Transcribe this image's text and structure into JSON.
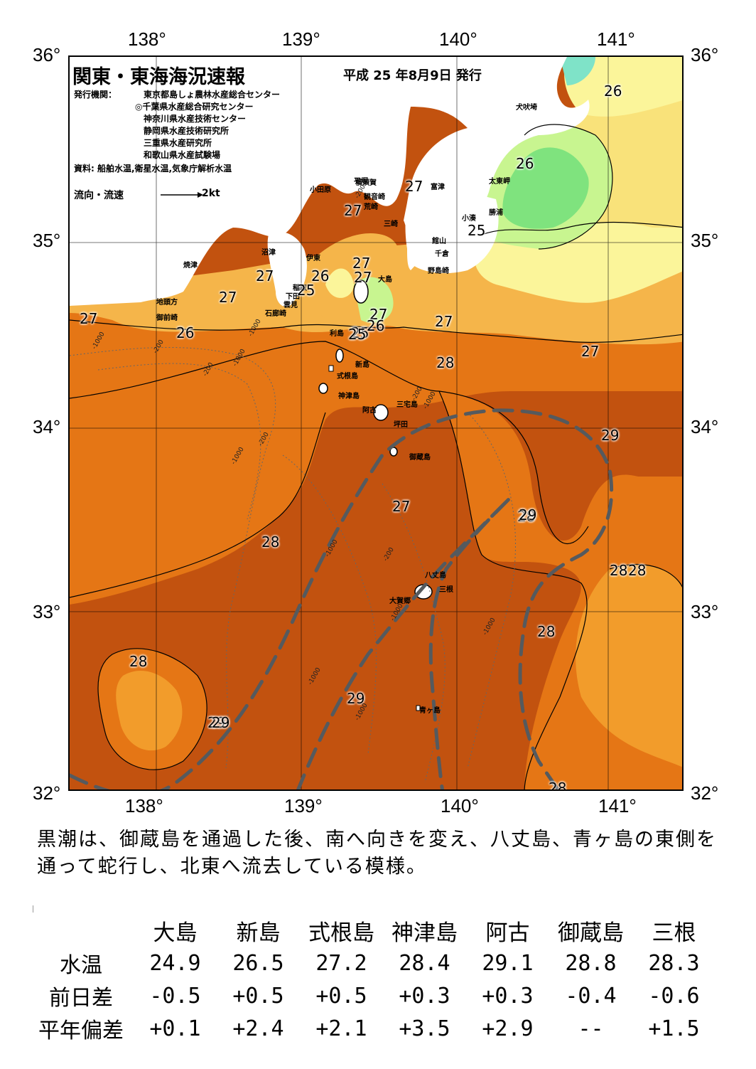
{
  "map": {
    "lon_ticks": [
      "138°",
      "139°",
      "140°",
      "141°"
    ],
    "lat_ticks": [
      "36°",
      "35°",
      "34°",
      "33°",
      "32°"
    ],
    "title": "関東・東海海況速報",
    "date": "平成 25 年8月9日 発行",
    "issuer_label": "発行機関：",
    "issuers": [
      "東京都島しょ農林水産総合センター",
      "◎千葉県水産総合研究センター",
      "神奈川県水産技術センター",
      "静岡県水産技術研究所",
      "三重県水産研究所",
      "和歌山県水産試験場"
    ],
    "source": "資料: 船舶水温,衛星水温,気象庁解析水温",
    "current_legend": "流向・流速",
    "current_scale": "2kt",
    "place_names": [
      "小田原",
      "平塚",
      "横須賀",
      "富津",
      "観音崎",
      "荒崎",
      "三崎",
      "館山",
      "千倉",
      "野島崎",
      "小湊",
      "勝浦",
      "太東岬",
      "犬吠埼",
      "沼津",
      "伊東",
      "稲取",
      "下田",
      "雲見",
      "石廊崎",
      "焼津",
      "地頭方",
      "御前崎",
      "大島",
      "利島",
      "新島",
      "式根島",
      "神津島",
      "三宅島",
      "阿古",
      "坪田",
      "御蔵島",
      "八丈島",
      "三根",
      "大賀郷",
      "青ヶ島"
    ],
    "isotherm_labels": [
      "26",
      "26",
      "27",
      "27",
      "27",
      "25",
      "27",
      "26",
      "25",
      "27",
      "27",
      "25",
      "27",
      "28",
      "26",
      "27",
      "25",
      "26",
      "27",
      "27",
      "27",
      "28",
      "28",
      "29",
      "29",
      "29",
      "28",
      "28",
      "28",
      "28",
      "29",
      "29",
      "28"
    ],
    "depth_labels": [
      "-200",
      "-200",
      "-1000",
      "-200",
      "-1000",
      "-1000",
      "-200",
      "-1000",
      "-1000",
      "-200",
      "-1000",
      "-1000",
      "-1000",
      "-1000",
      "-200",
      "-1000"
    ]
  },
  "description": "黒潮は、御蔵島を通過した後、南へ向きを変え、八丈島、青ヶ島の東側を通って蛇行し、北東へ流去している模様。",
  "table": {
    "columns": [
      "大島",
      "新島",
      "式根島",
      "神津島",
      "阿古",
      "御蔵島",
      "三根"
    ],
    "rows": [
      {
        "label": "水温",
        "values": [
          "24.9",
          "26.5",
          "27.2",
          "28.4",
          "29.1",
          "28.8",
          "28.3"
        ]
      },
      {
        "label": "前日差",
        "values": [
          "-0.5",
          "+0.5",
          "+0.5",
          "+0.3",
          "+0.3",
          "-0.4",
          "-0.6"
        ]
      },
      {
        "label": "平年偏差",
        "values": [
          "+0.1",
          "+2.4",
          "+2.1",
          "+3.5",
          "+2.9",
          "--",
          "+1.5"
        ]
      }
    ]
  },
  "colors": {
    "sst_29": "#c2520f",
    "sst_28": "#e57615",
    "sst_28_light": "#f29c2b",
    "sst_27": "#f5b54a",
    "sst_26": "#f9e27a",
    "sst_25": "#fbf59a",
    "sst_24": "#c8f590",
    "sst_23": "#7fe37e",
    "kuroshio_axis": "#555a5e",
    "land": "#ffffff"
  }
}
